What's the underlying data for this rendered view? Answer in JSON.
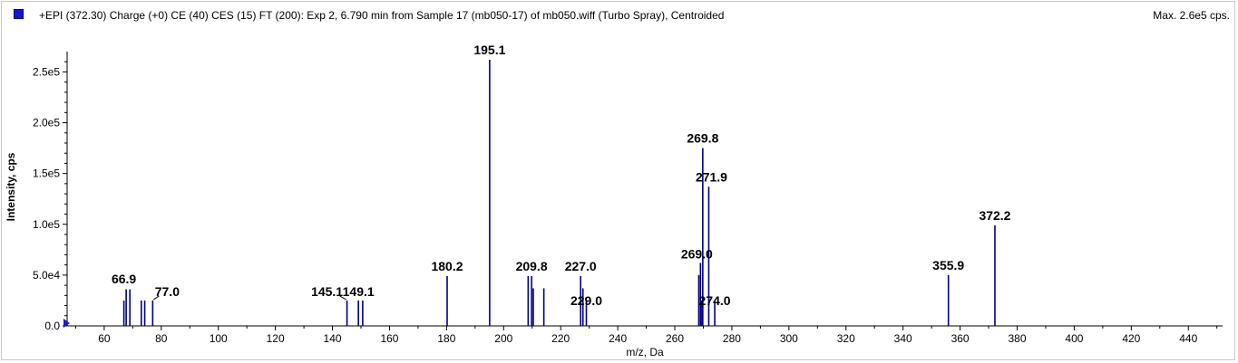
{
  "header": {
    "title": "+EPI (372.30) Charge (+0) CE (40) CES (15) FT (200): Exp 2, 6.790 min from Sample 17 (mb050-17) of mb050.wiff (Turbo Spray), Centroided",
    "max_label": "Max. 2.6e5 cps.",
    "swatch_color": "#1515d6"
  },
  "chart_data": {
    "type": "bar",
    "title": "+EPI (372.30) Charge (+0) CE (40) CES (15) FT (200): Exp 2, 6.790 min from Sample 17 (mb050-17) of mb050.wiff (Turbo Spray), Centroided",
    "xlabel": "m/z, Da",
    "ylabel": "Intensity, cps",
    "xlim": [
      47,
      452
    ],
    "ylim": [
      0,
      270000
    ],
    "x_ticks": [
      60,
      80,
      100,
      120,
      140,
      160,
      180,
      200,
      220,
      240,
      260,
      280,
      300,
      320,
      340,
      360,
      380,
      400,
      420,
      440
    ],
    "x_tick_labels": [
      "60",
      "80",
      "100",
      "120",
      "140",
      "160",
      "180",
      "200",
      "220",
      "240",
      "260",
      "280",
      "300",
      "320",
      "340",
      "360",
      "380",
      "400",
      "420",
      "440"
    ],
    "y_ticks": [
      0,
      50000,
      100000,
      150000,
      200000,
      250000
    ],
    "y_tick_labels": [
      "0.0",
      "5.0e4",
      "1.0e5",
      "1.5e5",
      "2.0e5",
      "2.5e5"
    ],
    "grid": false,
    "bar_color": "#000080",
    "peaks": [
      {
        "mz": 66.9,
        "intensity": 25000
      },
      {
        "mz": 67.7,
        "intensity": 36000
      },
      {
        "mz": 69.0,
        "intensity": 36000
      },
      {
        "mz": 73.0,
        "intensity": 25000
      },
      {
        "mz": 74.2,
        "intensity": 25000
      },
      {
        "mz": 77.0,
        "intensity": 25000
      },
      {
        "mz": 145.1,
        "intensity": 25000
      },
      {
        "mz": 149.1,
        "intensity": 25000
      },
      {
        "mz": 150.6,
        "intensity": 25000
      },
      {
        "mz": 180.2,
        "intensity": 49000
      },
      {
        "mz": 195.1,
        "intensity": 262000
      },
      {
        "mz": 208.6,
        "intensity": 49000
      },
      {
        "mz": 209.8,
        "intensity": 49000
      },
      {
        "mz": 210.4,
        "intensity": 37000
      },
      {
        "mz": 214.1,
        "intensity": 37000
      },
      {
        "mz": 227.0,
        "intensity": 49000
      },
      {
        "mz": 227.8,
        "intensity": 37000
      },
      {
        "mz": 229.0,
        "intensity": 25000
      },
      {
        "mz": 268.4,
        "intensity": 50000
      },
      {
        "mz": 269.0,
        "intensity": 62000
      },
      {
        "mz": 269.5,
        "intensity": 25000
      },
      {
        "mz": 269.8,
        "intensity": 175000
      },
      {
        "mz": 271.9,
        "intensity": 137000
      },
      {
        "mz": 274.0,
        "intensity": 25000
      },
      {
        "mz": 355.9,
        "intensity": 50000
      },
      {
        "mz": 372.2,
        "intensity": 99000
      }
    ],
    "peak_labels": [
      {
        "text": "66.9",
        "mz": 66.9,
        "intensity": 25000
      },
      {
        "text": "77.0",
        "mz": 77.0,
        "intensity": 25000
      },
      {
        "text": "145.1",
        "mz": 145.1,
        "intensity": 25000
      },
      {
        "text": "149.1",
        "mz": 149.1,
        "intensity": 25000
      },
      {
        "text": "180.2",
        "mz": 180.2,
        "intensity": 49000
      },
      {
        "text": "195.1",
        "mz": 195.1,
        "intensity": 262000
      },
      {
        "text": "209.8",
        "mz": 209.8,
        "intensity": 49000
      },
      {
        "text": "227.0",
        "mz": 227.0,
        "intensity": 49000
      },
      {
        "text": "229.0",
        "mz": 229.0,
        "intensity": 25000
      },
      {
        "text": "269.0",
        "mz": 269.0,
        "intensity": 62000
      },
      {
        "text": "269.8",
        "mz": 269.8,
        "intensity": 175000
      },
      {
        "text": "271.9",
        "mz": 271.9,
        "intensity": 137000
      },
      {
        "text": "274.0",
        "mz": 274.0,
        "intensity": 25000
      },
      {
        "text": "355.9",
        "mz": 355.9,
        "intensity": 50000
      },
      {
        "text": "372.2",
        "mz": 372.2,
        "intensity": 99000
      }
    ]
  }
}
